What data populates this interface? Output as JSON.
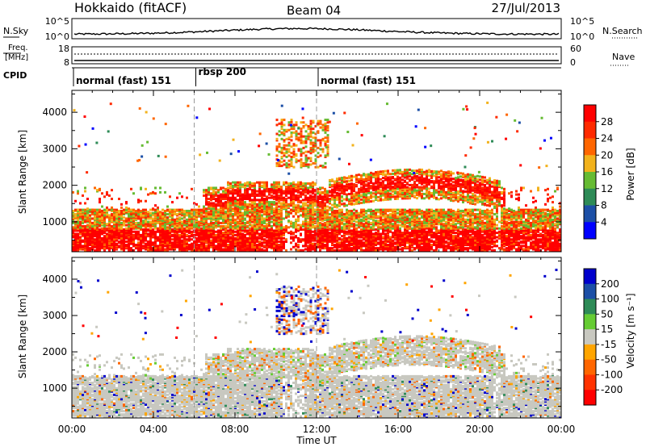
{
  "header": {
    "station": "Hokkaido (fitACF)",
    "beam": "Beam 04",
    "date": "27/Jul/2013"
  },
  "strip": {
    "nsky_label": "N.Sky",
    "nsky_ticks": [
      "10^5",
      "10^0"
    ],
    "nsearch_label": "N.Search",
    "nsearch_ticks": [
      "10^5",
      "10^0"
    ],
    "freq_label": "Freq.",
    "freq_unit": "[MHz]",
    "freq_ticks": [
      "18",
      "8"
    ],
    "nave_label": "Nave",
    "nave_ticks": [
      "60",
      "0"
    ],
    "cpid_label": "CPID"
  },
  "cpid_segments": [
    {
      "name": "normal (fast) 151",
      "start_hour": 0,
      "end_hour": 6
    },
    {
      "name": "rbsp 200",
      "start_hour": 6,
      "end_hour": 12
    },
    {
      "name": "normal (fast) 151",
      "start_hour": 12,
      "end_hour": 24
    }
  ],
  "colors": {
    "power": [
      "#0000ff",
      "#1c4fa6",
      "#2e8b57",
      "#66bb33",
      "#f2b21c",
      "#ff6600",
      "#ff2a00",
      "#ff0000"
    ],
    "velocity": [
      "#ff0000",
      "#ff3300",
      "#ff6600",
      "#ffa500",
      "#c8c8c0",
      "#66cc33",
      "#2e8b57",
      "#1c4fa6",
      "#0000cc"
    ]
  },
  "chart_data": [
    {
      "type": "heatmap",
      "name": "power",
      "ylabel": "Slant Range [km]",
      "ylim": [
        180,
        4600
      ],
      "yticks": [
        "1000",
        "2000",
        "3000",
        "4000"
      ],
      "xlim": [
        0,
        24
      ],
      "colorbar_label": "Power [dB]",
      "colorbar_ticks": [
        "4",
        "8",
        "12",
        "16",
        "20",
        "24",
        "28"
      ],
      "colorbar_range": [
        0,
        32
      ]
    },
    {
      "type": "heatmap",
      "name": "velocity",
      "ylabel": "Slant Range [km]",
      "ylim": [
        180,
        4600
      ],
      "yticks": [
        "1000",
        "2000",
        "3000",
        "4000"
      ],
      "xlim": [
        0,
        24
      ],
      "colorbar_label": "Velocity [m s⁻¹]",
      "colorbar_ticks": [
        "200",
        "100",
        "50",
        "15",
        "-15",
        "-50",
        "-100",
        "-200"
      ]
    }
  ],
  "xaxis": {
    "ticks": [
      "00:00",
      "04:00",
      "08:00",
      "12:00",
      "16:00",
      "20:00",
      "00:00"
    ],
    "label": "Time UT"
  }
}
